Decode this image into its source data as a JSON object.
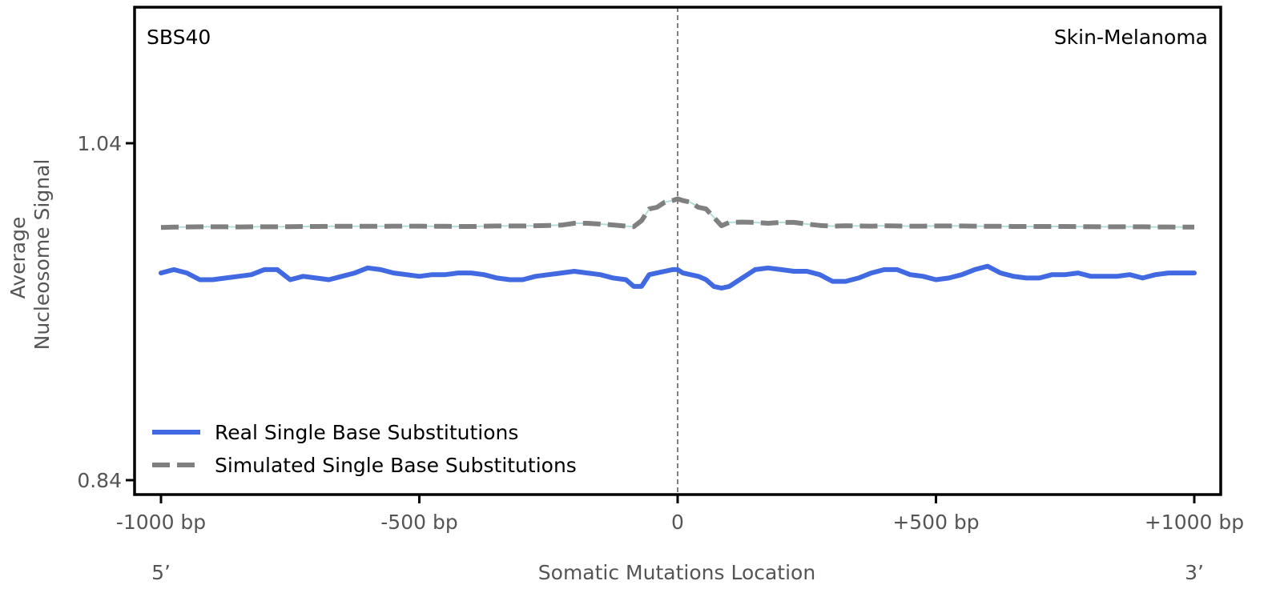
{
  "chart_data": {
    "type": "line",
    "signature_label": "SBS40",
    "tissue_label": "Skin-Melanoma",
    "xlabel": "Somatic Mutations Location",
    "ylabel_line1": "Average",
    "ylabel_line2": "Nucleosome Signal",
    "strand_left": "5’",
    "strand_right": "3’",
    "xlim": [
      -1050,
      1050
    ],
    "ylim": [
      0.83,
      1.12
    ],
    "x_ticks": [
      {
        "value": -1000,
        "label": "-1000 bp"
      },
      {
        "value": -500,
        "label": "-500 bp"
      },
      {
        "value": 0,
        "label": "0"
      },
      {
        "value": 500,
        "label": "+500 bp"
      },
      {
        "value": 1000,
        "label": "+1000 bp"
      }
    ],
    "y_ticks": [
      {
        "value": 1.04,
        "label": "1.04"
      },
      {
        "value": 0.84,
        "label": "0.84"
      }
    ],
    "center_line_x": 0,
    "legend_position": "lower-left",
    "colors": {
      "real": "#4169e1",
      "simulated": "#808080",
      "simulated_band": "#b2dfdb",
      "center_line": "#808080",
      "frame": "#000000",
      "tick_text": "#555555"
    },
    "x": [
      -1000,
      -975,
      -950,
      -925,
      -900,
      -875,
      -850,
      -825,
      -800,
      -775,
      -750,
      -725,
      -700,
      -675,
      -650,
      -625,
      -600,
      -575,
      -550,
      -525,
      -500,
      -475,
      -450,
      -425,
      -400,
      -375,
      -350,
      -325,
      -300,
      -275,
      -250,
      -225,
      -200,
      -175,
      -150,
      -125,
      -100,
      -85,
      -70,
      -55,
      -40,
      -25,
      -10,
      0,
      10,
      25,
      40,
      55,
      70,
      85,
      100,
      125,
      150,
      175,
      200,
      225,
      250,
      275,
      300,
      325,
      350,
      375,
      400,
      425,
      450,
      475,
      500,
      525,
      550,
      575,
      600,
      625,
      650,
      675,
      700,
      725,
      750,
      775,
      800,
      825,
      850,
      875,
      900,
      925,
      950,
      975,
      1000
    ],
    "series": [
      {
        "name": "Real Single Base Substitutions",
        "style": "solid",
        "values": [
          0.963,
          0.965,
          0.963,
          0.959,
          0.959,
          0.96,
          0.961,
          0.962,
          0.965,
          0.965,
          0.959,
          0.961,
          0.96,
          0.959,
          0.961,
          0.963,
          0.966,
          0.965,
          0.963,
          0.962,
          0.961,
          0.962,
          0.962,
          0.963,
          0.963,
          0.962,
          0.96,
          0.959,
          0.959,
          0.961,
          0.962,
          0.963,
          0.964,
          0.963,
          0.962,
          0.96,
          0.959,
          0.955,
          0.955,
          0.962,
          0.963,
          0.964,
          0.965,
          0.965,
          0.963,
          0.962,
          0.961,
          0.959,
          0.955,
          0.954,
          0.955,
          0.96,
          0.965,
          0.966,
          0.965,
          0.964,
          0.964,
          0.962,
          0.958,
          0.958,
          0.96,
          0.963,
          0.965,
          0.965,
          0.962,
          0.961,
          0.959,
          0.96,
          0.962,
          0.965,
          0.967,
          0.963,
          0.961,
          0.96,
          0.96,
          0.962,
          0.962,
          0.963,
          0.961,
          0.961,
          0.961,
          0.962,
          0.96,
          0.962,
          0.963,
          0.963,
          0.963
        ]
      },
      {
        "name": "Simulated Single Base Substitutions",
        "style": "dashed",
        "values": [
          0.99,
          0.9902,
          0.9903,
          0.9904,
          0.9904,
          0.9904,
          0.9903,
          0.9904,
          0.9904,
          0.9904,
          0.9905,
          0.9906,
          0.9906,
          0.9907,
          0.9907,
          0.9907,
          0.9907,
          0.9907,
          0.9908,
          0.9908,
          0.9908,
          0.9907,
          0.9907,
          0.9906,
          0.9906,
          0.9908,
          0.9909,
          0.9909,
          0.9909,
          0.991,
          0.9912,
          0.9914,
          0.9925,
          0.9925,
          0.992,
          0.9915,
          0.9908,
          0.9905,
          0.994,
          1.001,
          1.002,
          1.005,
          1.006,
          1.007,
          1.006,
          1.005,
          1.002,
          1.001,
          0.996,
          0.991,
          0.993,
          0.9932,
          0.993,
          0.9925,
          0.993,
          0.993,
          0.992,
          0.9912,
          0.9908,
          0.991,
          0.9909,
          0.9908,
          0.991,
          0.9909,
          0.9908,
          0.9908,
          0.9909,
          0.9909,
          0.9909,
          0.9908,
          0.9907,
          0.9907,
          0.9906,
          0.9906,
          0.9906,
          0.9906,
          0.9906,
          0.9905,
          0.9905,
          0.9904,
          0.9904,
          0.9904,
          0.9904,
          0.9903,
          0.9903,
          0.9902,
          0.9902
        ]
      }
    ]
  }
}
